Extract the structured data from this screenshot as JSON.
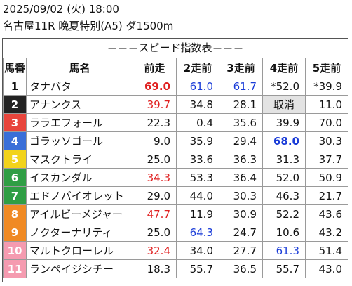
{
  "header": {
    "line1": "2025/09/02 (火) 18:00",
    "line2": "名古屋11R 晩夏特別(A5) ダ1500m"
  },
  "banner": "＝＝＝スピード指数表＝＝＝",
  "columns": [
    "馬番",
    "馬名",
    "前走",
    "2走前",
    "3走前",
    "4走前",
    "5走前"
  ],
  "frame_colors": {
    "1": "#ffffff",
    "2": "#222222",
    "3": "#e8453c",
    "4": "#3a6fd8",
    "5": "#f2d31b",
    "6": "#2f9e44",
    "7": "#2f9e44",
    "8": "#f08a24",
    "9": "#f08a24",
    "10": "#f59bb0",
    "11": "#f59bb0"
  },
  "rows": [
    {
      "num": "1",
      "name": "タナバタ",
      "v": [
        "69.0",
        "61.0",
        "61.7",
        "*52.0",
        "*39.9"
      ],
      "s": [
        "red-b",
        "blue",
        "blue",
        "",
        ""
      ]
    },
    {
      "num": "2",
      "name": "アナンクス",
      "v": [
        "39.7",
        "34.8",
        "28.1",
        "取消",
        "11.0"
      ],
      "s": [
        "red",
        "",
        "",
        "",
        ""
      ]
    },
    {
      "num": "3",
      "name": "ララエフォール",
      "v": [
        "22.3",
        "0.4",
        "35.6",
        "39.9",
        "70.0"
      ],
      "s": [
        "",
        "",
        "",
        "",
        ""
      ]
    },
    {
      "num": "4",
      "name": "ゴラッソゴール",
      "v": [
        "9.0",
        "35.9",
        "29.4",
        "68.0",
        "30.3"
      ],
      "s": [
        "",
        "",
        "",
        "blue-b",
        ""
      ]
    },
    {
      "num": "5",
      "name": "マスクトライ",
      "v": [
        "25.0",
        "33.6",
        "36.3",
        "31.3",
        "37.7"
      ],
      "s": [
        "",
        "",
        "",
        "",
        ""
      ]
    },
    {
      "num": "6",
      "name": "イスカンダル",
      "v": [
        "34.3",
        "53.3",
        "36.4",
        "52.0",
        "50.9"
      ],
      "s": [
        "red",
        "",
        "",
        "",
        ""
      ]
    },
    {
      "num": "7",
      "name": "エドノバイオレット",
      "v": [
        "29.0",
        "44.0",
        "30.3",
        "46.3",
        "21.7"
      ],
      "s": [
        "",
        "",
        "",
        "",
        ""
      ]
    },
    {
      "num": "8",
      "name": "アイルビーメジャー",
      "v": [
        "47.7",
        "11.9",
        "30.9",
        "52.2",
        "43.6"
      ],
      "s": [
        "red",
        "",
        "",
        "",
        ""
      ]
    },
    {
      "num": "9",
      "name": "ノクターナリティ",
      "v": [
        "25.0",
        "64.3",
        "24.7",
        "10.6",
        "43.2"
      ],
      "s": [
        "",
        "blue",
        "",
        "",
        ""
      ]
    },
    {
      "num": "10",
      "name": "マルトクローレル",
      "v": [
        "32.4",
        "34.0",
        "27.7",
        "61.3",
        "51.4"
      ],
      "s": [
        "red",
        "",
        "",
        "blue",
        ""
      ]
    },
    {
      "num": "11",
      "name": "ランペイジシチー",
      "v": [
        "18.3",
        "55.7",
        "36.5",
        "55.7",
        "43.0"
      ],
      "s": [
        "",
        "",
        "",
        "",
        ""
      ]
    }
  ]
}
